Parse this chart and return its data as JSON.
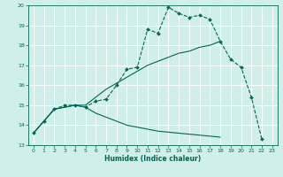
{
  "title": "",
  "xlabel": "Humidex (Indice chaleur)",
  "ylabel": "",
  "xlim": [
    -0.5,
    23.5
  ],
  "ylim": [
    13,
    20
  ],
  "yticks": [
    13,
    14,
    15,
    16,
    17,
    18,
    19,
    20
  ],
  "xticks": [
    0,
    1,
    2,
    3,
    4,
    5,
    6,
    7,
    8,
    9,
    10,
    11,
    12,
    13,
    14,
    15,
    16,
    17,
    18,
    19,
    20,
    21,
    22,
    23
  ],
  "bg_color": "#d0eeea",
  "grid_color": "#ffffff",
  "line_color": "#006655",
  "lines": [
    {
      "x": [
        0,
        1,
        2,
        3,
        4,
        5,
        6,
        7,
        8,
        9,
        10,
        11,
        12,
        13,
        14,
        15,
        16,
        17,
        18,
        19,
        20,
        21,
        22
      ],
      "y": [
        13.6,
        14.2,
        14.8,
        15.0,
        15.0,
        14.9,
        15.2,
        15.3,
        16.0,
        16.8,
        16.9,
        18.8,
        18.6,
        19.9,
        19.6,
        19.4,
        19.5,
        19.3,
        18.2,
        17.3,
        16.9,
        15.4,
        13.3
      ],
      "marker": true,
      "linestyle": "--"
    },
    {
      "x": [
        0,
        1,
        2,
        3,
        4,
        5,
        6,
        7,
        8,
        9,
        10,
        11,
        12,
        13,
        14,
        15,
        16,
        17,
        18
      ],
      "y": [
        13.6,
        14.2,
        14.8,
        14.9,
        15.0,
        15.0,
        15.4,
        15.8,
        16.1,
        16.4,
        16.7,
        17.0,
        17.2,
        17.4,
        17.6,
        17.7,
        17.9,
        18.0,
        18.2
      ],
      "marker": false,
      "linestyle": "-"
    },
    {
      "x": [
        0,
        1,
        2,
        3,
        4,
        5,
        6,
        7,
        8,
        9,
        10,
        11,
        12,
        13,
        14,
        15,
        16,
        17,
        18
      ],
      "y": [
        13.6,
        14.2,
        14.8,
        14.9,
        15.0,
        14.9,
        14.6,
        14.4,
        14.2,
        14.0,
        13.9,
        13.8,
        13.7,
        13.65,
        13.6,
        13.55,
        13.5,
        13.45,
        13.4
      ],
      "marker": false,
      "linestyle": "-"
    }
  ]
}
